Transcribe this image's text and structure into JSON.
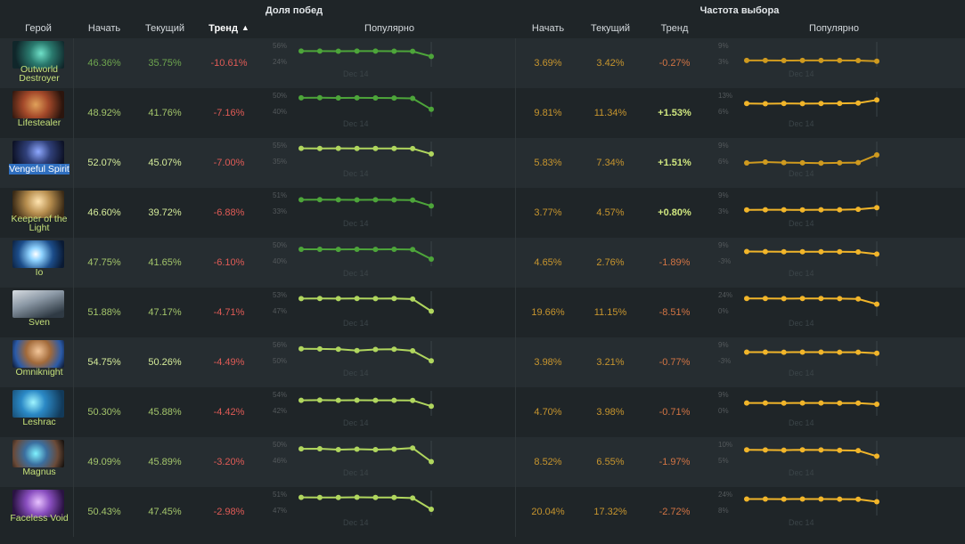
{
  "groups": {
    "winrate": "Доля побед",
    "pickrate": "Частота выбора"
  },
  "columns": {
    "hero": "Герой",
    "start": "Начать",
    "current": "Текущий",
    "trend": "Тренд",
    "popular": "Популярно"
  },
  "sort_indicator": "▲",
  "spark_x_label": "Dec 14",
  "colors": {
    "bg": "#1f2528",
    "row_alt": "#262d31",
    "green_line": "#4da53a",
    "lime_line": "#b0d65e",
    "gold_line": "#cf9a1f",
    "yellow_line": "#f1b52a",
    "red_text": "#e05b56",
    "selection": "#2f6fc0"
  },
  "rows": [
    {
      "hero": "Outworld Destroyer",
      "hero_icon": "outworld-destroyer-portrait",
      "win_start": "46.36%",
      "win_current": "35.75%",
      "win_trend": "-10.61%",
      "win_ticks": [
        "56%",
        "24%"
      ],
      "win_spark": [
        46.36,
        46.4,
        46.3,
        46.4,
        46.35,
        46.3,
        46.0,
        35.75
      ],
      "pick_start": "3.69%",
      "pick_current": "3.42%",
      "pick_trend": "-0.27%",
      "pick_ticks": [
        "9%",
        "3%"
      ],
      "pick_spark": [
        3.69,
        3.7,
        3.68,
        3.69,
        3.7,
        3.69,
        3.68,
        3.42
      ]
    },
    {
      "hero": "Lifestealer",
      "hero_icon": "lifestealer-portrait",
      "win_start": "48.92%",
      "win_current": "41.76%",
      "win_trend": "-7.16%",
      "win_ticks": [
        "50%",
        "40%"
      ],
      "win_spark": [
        48.92,
        49.0,
        48.9,
        48.95,
        48.9,
        48.85,
        48.6,
        41.76
      ],
      "pick_start": "9.81%",
      "pick_current": "11.34%",
      "pick_trend": "+1.53%",
      "pick_ticks": [
        "13%",
        "6%"
      ],
      "pick_spark": [
        9.81,
        9.7,
        9.8,
        9.75,
        9.8,
        9.85,
        10.0,
        11.34
      ]
    },
    {
      "hero": "Vengeful Spirit",
      "hero_icon": "vengeful-spirit-portrait",
      "selected": true,
      "win_start": "52.07%",
      "win_current": "45.07%",
      "win_trend": "-7.00%",
      "win_ticks": [
        "55%",
        "35%"
      ],
      "win_spark": [
        52.07,
        52.0,
        52.1,
        52.0,
        52.05,
        52.0,
        51.8,
        45.07
      ],
      "pick_start": "5.83%",
      "pick_current": "7.34%",
      "pick_trend": "+1.51%",
      "pick_ticks": [
        "9%",
        "6%"
      ],
      "pick_spark": [
        5.83,
        6.0,
        5.9,
        5.85,
        5.8,
        5.85,
        5.9,
        7.34
      ]
    },
    {
      "hero": "Keeper of the Light",
      "hero_icon": "keeper-of-the-light-portrait",
      "win_start": "46.60%",
      "win_current": "39.72%",
      "win_trend": "-6.88%",
      "win_ticks": [
        "51%",
        "33%"
      ],
      "win_spark": [
        46.6,
        46.7,
        46.6,
        46.5,
        46.6,
        46.55,
        46.2,
        39.72
      ],
      "pick_start": "3.77%",
      "pick_current": "4.57%",
      "pick_trend": "+0.80%",
      "pick_ticks": [
        "9%",
        "3%"
      ],
      "pick_spark": [
        3.77,
        3.8,
        3.8,
        3.75,
        3.8,
        3.8,
        3.95,
        4.57
      ]
    },
    {
      "hero": "Io",
      "hero_icon": "io-portrait",
      "win_start": "47.75%",
      "win_current": "41.65%",
      "win_trend": "-6.10%",
      "win_ticks": [
        "50%",
        "40%"
      ],
      "win_spark": [
        47.75,
        47.8,
        47.7,
        47.75,
        47.7,
        47.8,
        47.6,
        41.65
      ],
      "pick_start": "4.65%",
      "pick_current": "2.76%",
      "pick_trend": "-1.89%",
      "pick_ticks": [
        "9%",
        "-3%"
      ],
      "pick_spark": [
        4.65,
        4.6,
        4.5,
        4.55,
        4.5,
        4.45,
        4.35,
        2.76
      ]
    },
    {
      "hero": "Sven",
      "hero_icon": "sven-portrait",
      "win_start": "51.88%",
      "win_current": "47.17%",
      "win_trend": "-4.71%",
      "win_ticks": [
        "53%",
        "47%"
      ],
      "win_spark": [
        51.88,
        51.9,
        51.85,
        51.9,
        51.85,
        51.9,
        51.7,
        47.17
      ],
      "pick_start": "19.66%",
      "pick_current": "11.15%",
      "pick_trend": "-8.51%",
      "pick_ticks": [
        "24%",
        "0%"
      ],
      "pick_spark": [
        19.66,
        19.6,
        19.5,
        19.6,
        19.6,
        19.5,
        18.9,
        11.15
      ]
    },
    {
      "hero": "Omniknight",
      "hero_icon": "omniknight-portrait",
      "win_start": "54.75%",
      "win_current": "50.26%",
      "win_trend": "-4.49%",
      "win_ticks": [
        "56%",
        "50%"
      ],
      "win_spark": [
        54.75,
        54.7,
        54.6,
        54.1,
        54.5,
        54.6,
        54.0,
        50.26
      ],
      "pick_start": "3.98%",
      "pick_current": "3.21%",
      "pick_trend": "-0.77%",
      "pick_ticks": [
        "9%",
        "-3%"
      ],
      "pick_spark": [
        3.98,
        4.0,
        3.95,
        3.98,
        4.0,
        3.95,
        3.9,
        3.21
      ]
    },
    {
      "hero": "Leshrac",
      "hero_icon": "leshrac-portrait",
      "win_start": "50.30%",
      "win_current": "45.88%",
      "win_trend": "-4.42%",
      "win_ticks": [
        "54%",
        "42%"
      ],
      "win_spark": [
        50.3,
        50.4,
        50.3,
        50.35,
        50.3,
        50.3,
        50.2,
        45.88
      ],
      "pick_start": "4.70%",
      "pick_current": "3.98%",
      "pick_trend": "-0.71%",
      "pick_ticks": [
        "9%",
        "0%"
      ],
      "pick_spark": [
        4.7,
        4.7,
        4.65,
        4.7,
        4.7,
        4.65,
        4.6,
        3.98
      ]
    },
    {
      "hero": "Magnus",
      "hero_icon": "magnus-portrait",
      "win_start": "49.09%",
      "win_current": "45.89%",
      "win_trend": "-3.20%",
      "win_ticks": [
        "50%",
        "46%"
      ],
      "win_spark": [
        49.09,
        49.1,
        48.9,
        49.0,
        48.9,
        49.0,
        49.3,
        45.89
      ],
      "pick_start": "8.52%",
      "pick_current": "6.55%",
      "pick_trend": "-1.97%",
      "pick_ticks": [
        "10%",
        "5%"
      ],
      "pick_spark": [
        8.52,
        8.5,
        8.45,
        8.55,
        8.5,
        8.4,
        8.3,
        6.55
      ]
    },
    {
      "hero": "Faceless Void",
      "hero_icon": "faceless-void-portrait",
      "win_start": "50.43%",
      "win_current": "47.45%",
      "win_trend": "-2.98%",
      "win_ticks": [
        "51%",
        "47%"
      ],
      "win_spark": [
        50.43,
        50.4,
        50.4,
        50.45,
        50.4,
        50.4,
        50.25,
        47.45
      ],
      "pick_start": "20.04%",
      "pick_current": "17.32%",
      "pick_trend": "-2.72%",
      "pick_ticks": [
        "24%",
        "8%"
      ],
      "pick_spark": [
        20.04,
        20.0,
        19.9,
        20.0,
        20.0,
        19.95,
        19.8,
        17.32
      ]
    }
  ]
}
